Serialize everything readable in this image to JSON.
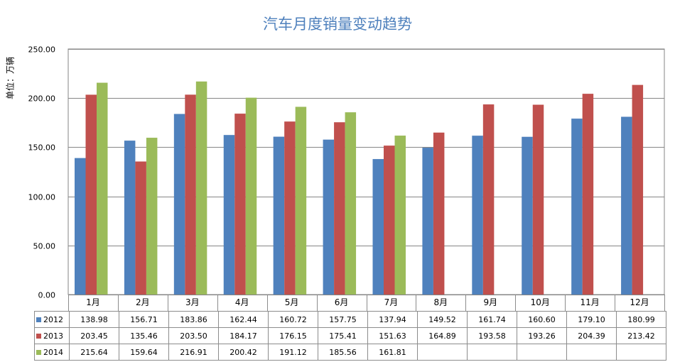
{
  "chart_data": {
    "type": "bar",
    "title": "汽车月度销量变动趋势",
    "ylabel": "单位：万辆",
    "ylim": [
      0,
      250
    ],
    "yticks": [
      "0.00",
      "50.00",
      "100.00",
      "150.00",
      "200.00",
      "250.00"
    ],
    "grid": true,
    "legend": "data-table",
    "categories": [
      "1月",
      "2月",
      "3月",
      "4月",
      "5月",
      "6月",
      "7月",
      "8月",
      "9月",
      "10月",
      "11月",
      "12月"
    ],
    "series": [
      {
        "name": "2012",
        "color": "#4f81bd",
        "values": [
          138.98,
          156.71,
          183.86,
          162.44,
          160.72,
          157.75,
          137.94,
          149.52,
          161.74,
          160.6,
          179.1,
          180.99
        ],
        "labels": [
          "138.98",
          "156.71",
          "183.86",
          "162.44",
          "160.72",
          "157.75",
          "137.94",
          "149.52",
          "161.74",
          "160.60",
          "179.10",
          "180.99"
        ]
      },
      {
        "name": "2013",
        "color": "#c0504d",
        "values": [
          203.45,
          135.46,
          203.5,
          184.17,
          176.15,
          175.41,
          151.63,
          164.89,
          193.58,
          193.26,
          204.39,
          213.42
        ],
        "labels": [
          "203.45",
          "135.46",
          "203.50",
          "184.17",
          "176.15",
          "175.41",
          "151.63",
          "164.89",
          "193.58",
          "193.26",
          "204.39",
          "213.42"
        ]
      },
      {
        "name": "2014",
        "color": "#9bbb59",
        "values": [
          215.64,
          159.64,
          216.91,
          200.42,
          191.12,
          185.56,
          161.81,
          null,
          null,
          null,
          null,
          null
        ],
        "labels": [
          "215.64",
          "159.64",
          "216.91",
          "200.42",
          "191.12",
          "185.56",
          "161.81",
          "",
          "",
          "",
          "",
          ""
        ]
      }
    ]
  }
}
